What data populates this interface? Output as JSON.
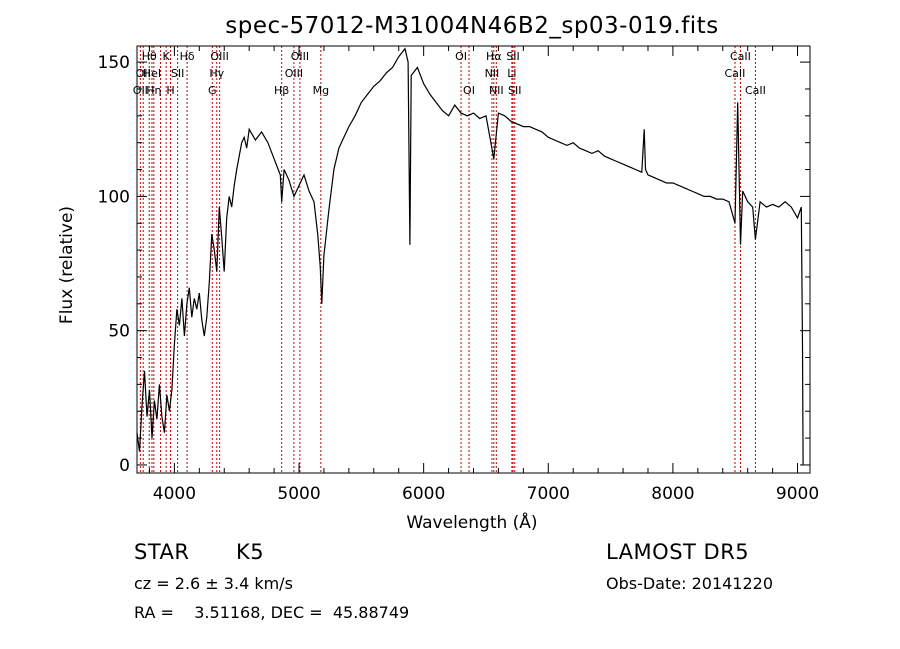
{
  "chart_data": {
    "type": "line",
    "title": "spec-57012-M31004N46B2_sp03-019.fits",
    "xlabel": "Wavelength (Å)",
    "ylabel": "Flux (relative)",
    "xlim": [
      3700,
      9100
    ],
    "ylim": [
      -3,
      156
    ],
    "xticks": [
      4000,
      5000,
      6000,
      7000,
      8000,
      9000
    ],
    "yticks": [
      0,
      50,
      100,
      150
    ],
    "grid": false,
    "series": [
      {
        "color": "#000000",
        "points": [
          [
            3700,
            12
          ],
          [
            3720,
            5
          ],
          [
            3740,
            22
          ],
          [
            3760,
            35
          ],
          [
            3780,
            18
          ],
          [
            3800,
            28
          ],
          [
            3820,
            10
          ],
          [
            3840,
            24
          ],
          [
            3860,
            17
          ],
          [
            3880,
            30
          ],
          [
            3900,
            18
          ],
          [
            3920,
            12
          ],
          [
            3940,
            26
          ],
          [
            3960,
            20
          ],
          [
            3980,
            28
          ],
          [
            4000,
            45
          ],
          [
            4020,
            58
          ],
          [
            4040,
            52
          ],
          [
            4060,
            62
          ],
          [
            4080,
            48
          ],
          [
            4100,
            60
          ],
          [
            4120,
            66
          ],
          [
            4140,
            55
          ],
          [
            4160,
            62
          ],
          [
            4180,
            58
          ],
          [
            4200,
            64
          ],
          [
            4220,
            54
          ],
          [
            4240,
            48
          ],
          [
            4260,
            55
          ],
          [
            4280,
            68
          ],
          [
            4300,
            86
          ],
          [
            4320,
            80
          ],
          [
            4340,
            72
          ],
          [
            4360,
            96
          ],
          [
            4380,
            85
          ],
          [
            4400,
            72
          ],
          [
            4420,
            92
          ],
          [
            4440,
            100
          ],
          [
            4460,
            96
          ],
          [
            4480,
            104
          ],
          [
            4500,
            110
          ],
          [
            4520,
            115
          ],
          [
            4540,
            120
          ],
          [
            4560,
            122
          ],
          [
            4580,
            118
          ],
          [
            4600,
            125
          ],
          [
            4650,
            121
          ],
          [
            4700,
            124
          ],
          [
            4750,
            120
          ],
          [
            4800,
            114
          ],
          [
            4850,
            108
          ],
          [
            4861,
            98
          ],
          [
            4880,
            110
          ],
          [
            4920,
            106
          ],
          [
            4960,
            100
          ],
          [
            5000,
            104
          ],
          [
            5040,
            108
          ],
          [
            5080,
            102
          ],
          [
            5120,
            98
          ],
          [
            5150,
            86
          ],
          [
            5170,
            74
          ],
          [
            5183,
            60
          ],
          [
            5200,
            78
          ],
          [
            5240,
            95
          ],
          [
            5280,
            110
          ],
          [
            5320,
            118
          ],
          [
            5360,
            122
          ],
          [
            5400,
            126
          ],
          [
            5450,
            130
          ],
          [
            5500,
            135
          ],
          [
            5550,
            138
          ],
          [
            5600,
            141
          ],
          [
            5650,
            143
          ],
          [
            5700,
            146
          ],
          [
            5750,
            148
          ],
          [
            5800,
            152
          ],
          [
            5850,
            155
          ],
          [
            5875,
            150
          ],
          [
            5890,
            82
          ],
          [
            5900,
            145
          ],
          [
            5950,
            148
          ],
          [
            6000,
            142
          ],
          [
            6050,
            138
          ],
          [
            6100,
            135
          ],
          [
            6150,
            132
          ],
          [
            6200,
            130
          ],
          [
            6250,
            134
          ],
          [
            6300,
            131
          ],
          [
            6350,
            130
          ],
          [
            6400,
            131
          ],
          [
            6450,
            129
          ],
          [
            6500,
            130
          ],
          [
            6563,
            114
          ],
          [
            6600,
            131
          ],
          [
            6650,
            130
          ],
          [
            6700,
            128
          ],
          [
            6750,
            127
          ],
          [
            6800,
            126
          ],
          [
            6850,
            126
          ],
          [
            6900,
            125
          ],
          [
            6950,
            124
          ],
          [
            7000,
            122
          ],
          [
            7050,
            121
          ],
          [
            7100,
            120
          ],
          [
            7150,
            119
          ],
          [
            7200,
            120
          ],
          [
            7250,
            118
          ],
          [
            7300,
            117
          ],
          [
            7350,
            116
          ],
          [
            7400,
            117
          ],
          [
            7450,
            115
          ],
          [
            7500,
            114
          ],
          [
            7550,
            113
          ],
          [
            7600,
            112
          ],
          [
            7650,
            111
          ],
          [
            7700,
            110
          ],
          [
            7750,
            109
          ],
          [
            7770,
            125
          ],
          [
            7780,
            110
          ],
          [
            7800,
            108
          ],
          [
            7850,
            107
          ],
          [
            7900,
            106
          ],
          [
            7950,
            105
          ],
          [
            8000,
            105
          ],
          [
            8050,
            104
          ],
          [
            8100,
            103
          ],
          [
            8150,
            102
          ],
          [
            8200,
            101
          ],
          [
            8250,
            100
          ],
          [
            8300,
            100
          ],
          [
            8350,
            99
          ],
          [
            8400,
            99
          ],
          [
            8450,
            98
          ],
          [
            8498,
            90
          ],
          [
            8520,
            135
          ],
          [
            8542,
            82
          ],
          [
            8560,
            102
          ],
          [
            8600,
            98
          ],
          [
            8640,
            96
          ],
          [
            8662,
            84
          ],
          [
            8700,
            98
          ],
          [
            8750,
            96
          ],
          [
            8800,
            97
          ],
          [
            8850,
            96
          ],
          [
            8900,
            98
          ],
          [
            8950,
            96
          ],
          [
            9000,
            92
          ],
          [
            9030,
            96
          ],
          [
            9040,
            44
          ],
          [
            9045,
            0
          ]
        ]
      }
    ],
    "lines": [
      {
        "wl": 3727,
        "label": "OII",
        "row": 2
      },
      {
        "wl": 3750,
        "label": "OII",
        "row": 1
      },
      {
        "wl": 3798,
        "label": "Hθ",
        "row": 0
      },
      {
        "wl": 3820,
        "label": "HeI",
        "row": 1
      },
      {
        "wl": 3835,
        "label": "Hη",
        "row": 2
      },
      {
        "wl": 3889,
        "label": "",
        "row": 0
      },
      {
        "wl": 3934,
        "label": "K",
        "row": 0
      },
      {
        "wl": 3969,
        "label": "H",
        "row": 2
      },
      {
        "wl": 4026,
        "label": "SII",
        "row": 1
      },
      {
        "wl": 4102,
        "label": "Hδ",
        "row": 0
      },
      {
        "wl": 4304,
        "label": "G",
        "row": 2
      },
      {
        "wl": 4340,
        "label": "Hγ",
        "row": 1
      },
      {
        "wl": 4363,
        "label": "OIII",
        "row": 0
      },
      {
        "wl": 4861,
        "label": "Hβ",
        "row": 2
      },
      {
        "wl": 4959,
        "label": "OIII",
        "row": 1
      },
      {
        "wl": 5007,
        "label": "OIII",
        "row": 0
      },
      {
        "wl": 5175,
        "label": "Mg",
        "row": 2
      },
      {
        "wl": 6300,
        "label": "OI",
        "row": 0
      },
      {
        "wl": 6364,
        "label": "OI",
        "row": 2
      },
      {
        "wl": 6548,
        "label": "NII",
        "row": 1
      },
      {
        "wl": 6563,
        "label": "Hα",
        "row": 0
      },
      {
        "wl": 6583,
        "label": "NII",
        "row": 2
      },
      {
        "wl": 6708,
        "label": "Li",
        "row": 1
      },
      {
        "wl": 6717,
        "label": "SII",
        "row": 0
      },
      {
        "wl": 6731,
        "label": "SII",
        "row": 2
      },
      {
        "wl": 8498,
        "label": "CaII",
        "row": 1
      },
      {
        "wl": 8542,
        "label": "CaII",
        "row": 0
      },
      {
        "wl": 8662,
        "label": "CaII",
        "row": 2
      }
    ],
    "line_color": "#cc0000"
  },
  "info": {
    "class_label": "STAR",
    "subclass": "K5",
    "survey": "LAMOST DR5",
    "cz_text": "cz = 2.6 ± 3.4 km/s",
    "obs_date": "Obs-Date: 20141220",
    "radec": "RA =    3.51168, DEC =  45.88749"
  }
}
